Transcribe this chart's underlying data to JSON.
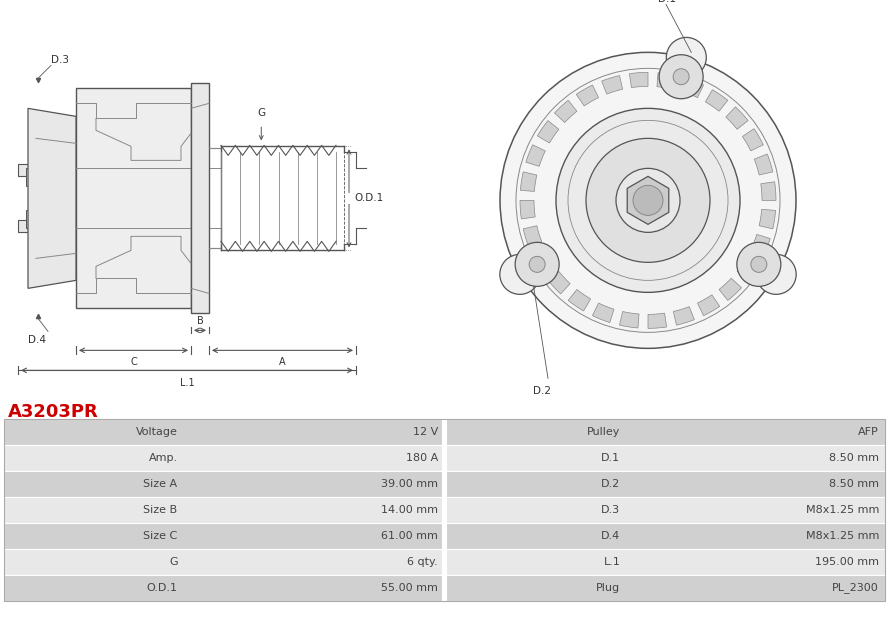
{
  "title": "A3203PR",
  "title_color": "#cc0000",
  "bg_color": "#ffffff",
  "table_header_bg": "#d0d0d0",
  "table_row_bg1": "#e8e8e8",
  "table_row_bg2": "#f2f2f2",
  "left_labels": [
    "Voltage",
    "Amp.",
    "Size A",
    "Size B",
    "Size C",
    "G",
    "O.D.1"
  ],
  "left_values": [
    "12 V",
    "180 A",
    "39.00 mm",
    "14.00 mm",
    "61.00 mm",
    "6 qty.",
    "55.00 mm"
  ],
  "right_labels": [
    "Pulley",
    "D.1",
    "D.2",
    "D.3",
    "D.4",
    "L.1",
    "Plug"
  ],
  "right_values": [
    "AFP",
    "8.50 mm",
    "8.50 mm",
    "M8x1.25 mm",
    "M8x1.25 mm",
    "195.00 mm",
    "PL_2300"
  ],
  "lc": "#888888",
  "lc_dark": "#555555",
  "dim_color": "#555555"
}
